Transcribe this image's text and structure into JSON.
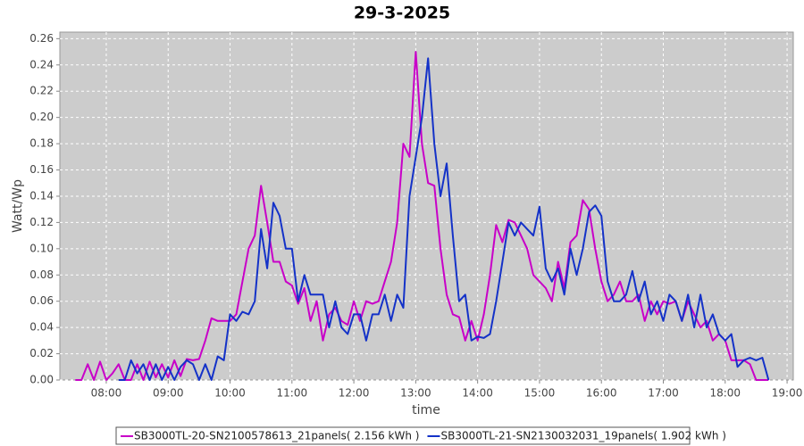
{
  "chart_data": {
    "type": "line",
    "title": "29-3-2025",
    "x_label": "time",
    "y_label": "Watt/Wp",
    "x": [
      7.5,
      7.6,
      7.7,
      7.8,
      7.9,
      8.0,
      8.1,
      8.2,
      8.3,
      8.4,
      8.5,
      8.6,
      8.7,
      8.8,
      8.9,
      9.0,
      9.1,
      9.2,
      9.3,
      9.4,
      9.5,
      9.6,
      9.7,
      9.8,
      9.9,
      10.0,
      10.1,
      10.2,
      10.3,
      10.4,
      10.5,
      10.6,
      10.7,
      10.8,
      10.9,
      11.0,
      11.1,
      11.2,
      11.3,
      11.4,
      11.5,
      11.6,
      11.7,
      11.8,
      11.9,
      12.0,
      12.1,
      12.2,
      12.3,
      12.4,
      12.5,
      12.6,
      12.7,
      12.8,
      12.9,
      13.0,
      13.1,
      13.2,
      13.3,
      13.4,
      13.5,
      13.6,
      13.7,
      13.8,
      13.9,
      14.0,
      14.1,
      14.2,
      14.3,
      14.4,
      14.5,
      14.6,
      14.7,
      14.8,
      14.9,
      15.0,
      15.1,
      15.2,
      15.3,
      15.4,
      15.5,
      15.6,
      15.7,
      15.8,
      15.9,
      16.0,
      16.1,
      16.2,
      16.3,
      16.4,
      16.5,
      16.6,
      16.7,
      16.8,
      16.9,
      17.0,
      17.1,
      17.2,
      17.3,
      17.4,
      17.5,
      17.6,
      17.7,
      17.8,
      17.9,
      18.0,
      18.1,
      18.2,
      18.3,
      18.4,
      18.5,
      18.6,
      18.7,
      18.8,
      18.9
    ],
    "series": [
      {
        "name": "SB3000TL-20-SN2100578613_21panels( 2.156 kWh )",
        "color": "#c800c8",
        "values": [
          0,
          0,
          0.012,
          0,
          0.014,
          0,
          0.005,
          0.012,
          0,
          0,
          0.012,
          0,
          0.014,
          0.002,
          0.012,
          0.002,
          0.015,
          0.003,
          0.016,
          0.015,
          0.016,
          0.03,
          0.047,
          0.045,
          0.045,
          0.045,
          0.05,
          0.075,
          0.1,
          0.11,
          0.148,
          0.12,
          0.09,
          0.09,
          0.075,
          0.072,
          0.058,
          0.07,
          0.045,
          0.06,
          0.03,
          0.05,
          0.055,
          0.045,
          0.042,
          0.06,
          0.045,
          0.06,
          0.058,
          0.06,
          0.075,
          0.09,
          0.12,
          0.18,
          0.17,
          0.25,
          0.18,
          0.15,
          0.148,
          0.1,
          0.065,
          0.05,
          0.048,
          0.03,
          0.045,
          0.03,
          0.05,
          0.08,
          0.118,
          0.105,
          0.122,
          0.12,
          0.11,
          0.1,
          0.08,
          0.075,
          0.07,
          0.06,
          0.09,
          0.07,
          0.105,
          0.11,
          0.137,
          0.13,
          0.1,
          0.075,
          0.06,
          0.065,
          0.075,
          0.06,
          0.06,
          0.065,
          0.045,
          0.06,
          0.05,
          0.06,
          0.058,
          0.06,
          0.045,
          0.06,
          0.05,
          0.04,
          0.045,
          0.03,
          0.035,
          0.03,
          0.015,
          0.015,
          0.015,
          0.012,
          0,
          0,
          0,
          null,
          null
        ]
      },
      {
        "name": "SB3000TL-21-SN2130032031_19panels( 1.902 kWh )",
        "color": "#1432c8",
        "values": [
          null,
          null,
          null,
          null,
          null,
          null,
          null,
          0,
          0,
          0.015,
          0.005,
          0.012,
          0,
          0.012,
          0,
          0.01,
          0,
          0.01,
          0.015,
          0.012,
          0,
          0.012,
          0,
          0.018,
          0.015,
          0.05,
          0.045,
          0.052,
          0.05,
          0.06,
          0.115,
          0.085,
          0.135,
          0.125,
          0.1,
          0.1,
          0.06,
          0.08,
          0.065,
          0.065,
          0.065,
          0.04,
          0.06,
          0.04,
          0.035,
          0.05,
          0.05,
          0.03,
          0.05,
          0.05,
          0.065,
          0.045,
          0.065,
          0.055,
          0.14,
          0.17,
          0.2,
          0.245,
          0.18,
          0.14,
          0.165,
          0.11,
          0.06,
          0.065,
          0.03,
          0.033,
          0.032,
          0.035,
          0.06,
          0.09,
          0.12,
          0.11,
          0.12,
          0.115,
          0.11,
          0.132,
          0.085,
          0.075,
          0.085,
          0.065,
          0.1,
          0.08,
          0.1,
          0.128,
          0.133,
          0.125,
          0.075,
          0.06,
          0.06,
          0.065,
          0.083,
          0.06,
          0.075,
          0.05,
          0.06,
          0.045,
          0.065,
          0.06,
          0.045,
          0.065,
          0.04,
          0.065,
          0.04,
          0.05,
          0.035,
          0.03,
          0.035,
          0.01,
          0.015,
          0.017,
          0.015,
          0.017,
          0,
          null,
          null
        ]
      }
    ],
    "xlim": [
      7.25,
      19.1
    ],
    "xticks": [
      {
        "value": 8,
        "label": "08:00"
      },
      {
        "value": 9,
        "label": "09:00"
      },
      {
        "value": 10,
        "label": "10:00"
      },
      {
        "value": 11,
        "label": "11:00"
      },
      {
        "value": 12,
        "label": "12:00"
      },
      {
        "value": 13,
        "label": "13:00"
      },
      {
        "value": 14,
        "label": "14:00"
      },
      {
        "value": 15,
        "label": "15:00"
      },
      {
        "value": 16,
        "label": "16:00"
      },
      {
        "value": 17,
        "label": "17:00"
      },
      {
        "value": 18,
        "label": "18:00"
      },
      {
        "value": 19,
        "label": "19:00"
      }
    ],
    "ylim": [
      0,
      0.265
    ],
    "yticks": [
      {
        "value": 0,
        "label": "0.00"
      },
      {
        "value": 0.02,
        "label": "0.02"
      },
      {
        "value": 0.04,
        "label": "0.04"
      },
      {
        "value": 0.06,
        "label": "0.06"
      },
      {
        "value": 0.08,
        "label": "0.08"
      },
      {
        "value": 0.1,
        "label": "0.10"
      },
      {
        "value": 0.12,
        "label": "0.12"
      },
      {
        "value": 0.14,
        "label": "0.14"
      },
      {
        "value": 0.16,
        "label": "0.16"
      },
      {
        "value": 0.18,
        "label": "0.18"
      },
      {
        "value": 0.2,
        "label": "0.20"
      },
      {
        "value": 0.22,
        "label": "0.22"
      },
      {
        "value": 0.24,
        "label": "0.24"
      },
      {
        "value": 0.26,
        "label": "0.26"
      }
    ],
    "grid": true
  }
}
